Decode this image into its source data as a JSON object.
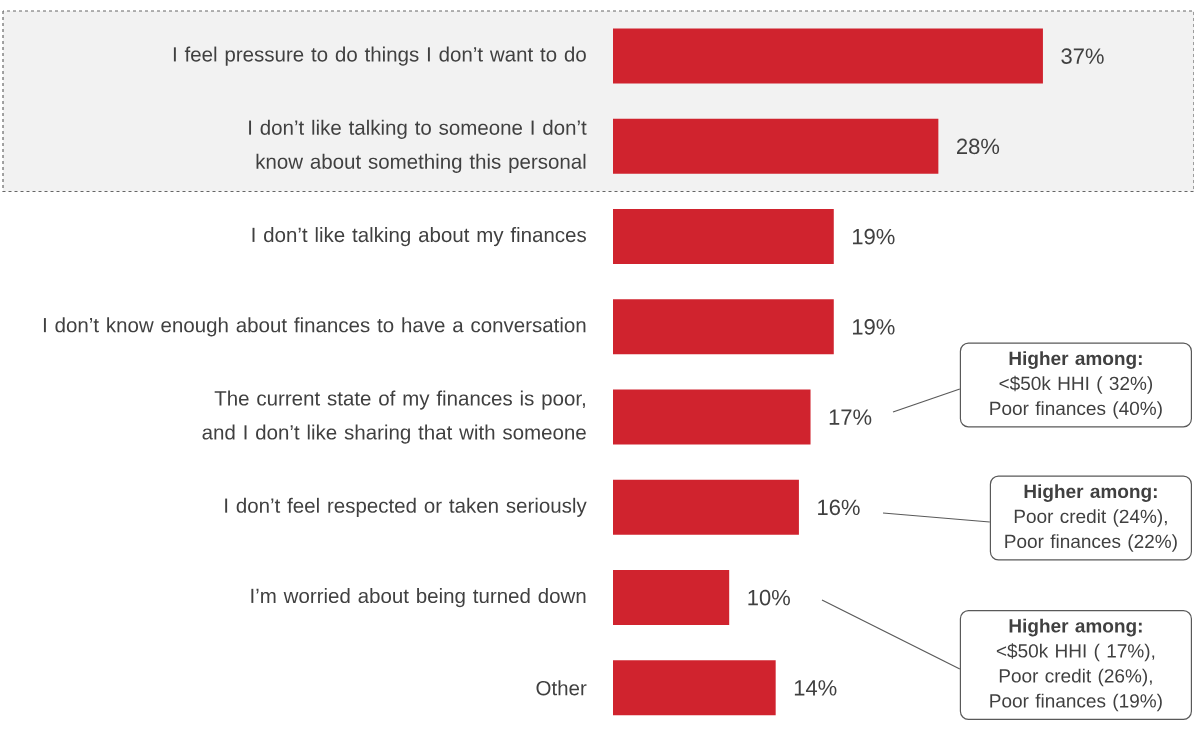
{
  "chart_data": {
    "type": "bar",
    "orientation": "horizontal",
    "categories": [
      "I feel pressure to do things I don’t want to do",
      "I don’t like talking to someone I don’t know about something this personal",
      "I don’t like talking about my finances",
      "I don’t know enough about finances to have a conversation",
      "The current state of my finances is poor, and I don’t like sharing that with someone",
      "I don’t feel respected or taken seriously",
      "I’m worried about being turned down",
      "Other"
    ],
    "values": [
      37,
      28,
      19,
      19,
      17,
      16,
      10,
      14
    ],
    "value_labels": [
      "37%",
      "28%",
      "19%",
      "19%",
      "17%",
      "16%",
      "10%",
      "14%"
    ],
    "color": "#d0232e",
    "xlim": [
      0,
      50
    ],
    "bands": [
      {
        "axis": "y",
        "from": "I feel pressure to do things I don’t want to do",
        "to": "I don’t like talking to someone I don’t know about something this personal",
        "color": "#f2f2f2"
      }
    ],
    "annotations": [
      "**Higher among:** <$50k HHI ( 32%) Poor finances (40%)",
      "**Higher among:** Poor credit (24%), Poor finances (22%)",
      "**Higher among:** <$50k HHI ( 17%), Poor credit (26%), Poor finances (19%)"
    ]
  }
}
